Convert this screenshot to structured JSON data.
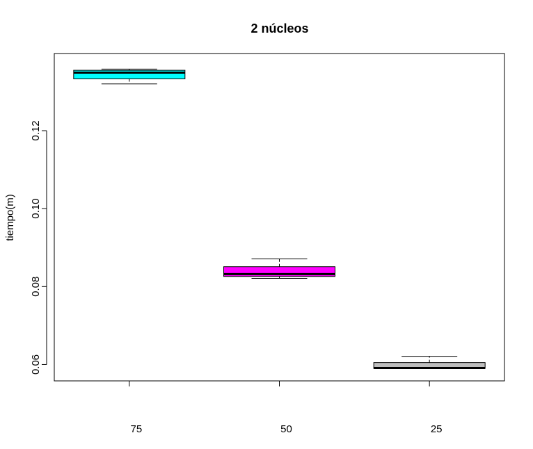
{
  "chart_data": {
    "type": "box",
    "title": "2 núcleos",
    "xlabel": "",
    "ylabel": "tiempo(m)",
    "ylim": [
      0.0558,
      0.1398
    ],
    "y_ticks": [
      0.06,
      0.08,
      0.1,
      0.12
    ],
    "y_tick_labels": [
      "0.06",
      "0.08",
      "0.10",
      "0.12"
    ],
    "categories": [
      "75",
      "50",
      "25"
    ],
    "boxes": [
      {
        "category": "75",
        "whisker_low": 0.132,
        "q1": 0.1333,
        "median": 0.1349,
        "q3": 0.1355,
        "whisker_high": 0.1358,
        "fill": "#00FFFF"
      },
      {
        "category": "50",
        "whisker_low": 0.0821,
        "q1": 0.0826,
        "median": 0.0832,
        "q3": 0.0851,
        "whisker_high": 0.0871,
        "fill": "#FF00FF"
      },
      {
        "category": "25",
        "whisker_low": 0.059,
        "q1": 0.059,
        "median": 0.0591,
        "q3": 0.0605,
        "whisker_high": 0.0621,
        "fill": "#BEBEBE"
      }
    ],
    "grid": false,
    "legend": "none"
  }
}
